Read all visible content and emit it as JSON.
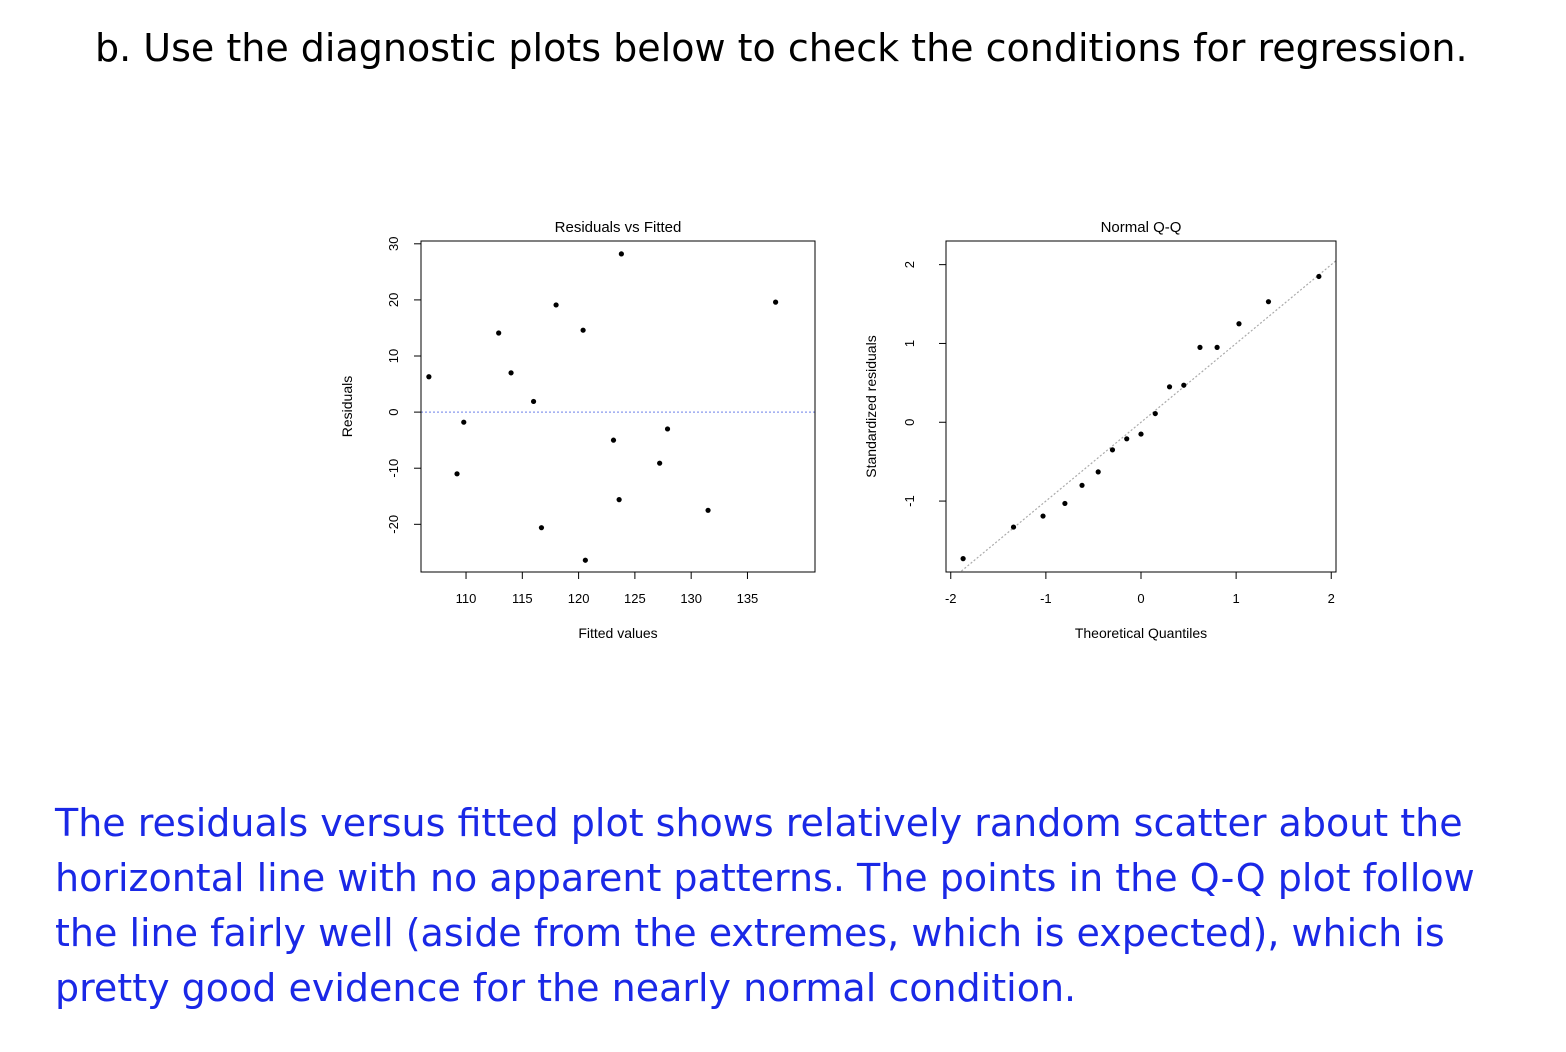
{
  "question": "b.  Use the diagnostic plots below to check the conditions for regression.",
  "answer": "The residuals versus fitted plot shows relatively random scatter about the horizontal line with no apparent patterns. The points in the Q-Q plot follow the line fairly well (aside from the extremes, which is expected), which is pretty good evidence for the nearly normal condition.",
  "chart_data": [
    {
      "type": "scatter",
      "title": "Residuals vs Fitted",
      "xlabel": "Fitted values",
      "ylabel": "Residuals",
      "xlim": [
        106,
        141
      ],
      "ylim": [
        -28.5,
        30.5
      ],
      "xticks": [
        110,
        115,
        120,
        125,
        130,
        135
      ],
      "yticks": [
        -20,
        -10,
        0,
        10,
        20,
        30
      ],
      "reference_line": {
        "type": "horizontal",
        "y": 0,
        "style": "dotted",
        "color": "#8899ee"
      },
      "points": [
        {
          "x": 106.7,
          "y": 6.3
        },
        {
          "x": 109.2,
          "y": -11.0
        },
        {
          "x": 109.8,
          "y": -1.8
        },
        {
          "x": 112.9,
          "y": 14.1
        },
        {
          "x": 114.0,
          "y": 7.0
        },
        {
          "x": 116.0,
          "y": 1.9
        },
        {
          "x": 116.7,
          "y": -20.6
        },
        {
          "x": 118.0,
          "y": 19.1
        },
        {
          "x": 120.4,
          "y": 14.6
        },
        {
          "x": 120.6,
          "y": -26.4
        },
        {
          "x": 123.1,
          "y": -5.0
        },
        {
          "x": 123.6,
          "y": -15.6
        },
        {
          "x": 123.8,
          "y": 28.2
        },
        {
          "x": 127.2,
          "y": -9.1
        },
        {
          "x": 127.9,
          "y": -3.0
        },
        {
          "x": 131.5,
          "y": -17.5
        },
        {
          "x": 137.5,
          "y": 19.6
        }
      ]
    },
    {
      "type": "scatter",
      "title": "Normal Q-Q",
      "xlabel": "Theoretical Quantiles",
      "ylabel": "Standardized residuals",
      "xlim": [
        -2.05,
        2.05
      ],
      "ylim": [
        -1.9,
        2.3
      ],
      "xticks": [
        -2,
        -1,
        0,
        1,
        2
      ],
      "yticks": [
        -1,
        0,
        1,
        2
      ],
      "reference_line": {
        "type": "y=x",
        "style": "dotted",
        "color": "#aaaaaa"
      },
      "points": [
        {
          "x": -1.87,
          "y": -1.73
        },
        {
          "x": -1.34,
          "y": -1.33
        },
        {
          "x": -1.03,
          "y": -1.19
        },
        {
          "x": -0.8,
          "y": -1.03
        },
        {
          "x": -0.62,
          "y": -0.8
        },
        {
          "x": -0.45,
          "y": -0.63
        },
        {
          "x": -0.3,
          "y": -0.35
        },
        {
          "x": -0.15,
          "y": -0.21
        },
        {
          "x": 0.0,
          "y": -0.15
        },
        {
          "x": 0.15,
          "y": 0.11
        },
        {
          "x": 0.3,
          "y": 0.45
        },
        {
          "x": 0.45,
          "y": 0.47
        },
        {
          "x": 0.62,
          "y": 0.95
        },
        {
          "x": 0.8,
          "y": 0.95
        },
        {
          "x": 1.03,
          "y": 1.25
        },
        {
          "x": 1.34,
          "y": 1.53
        },
        {
          "x": 1.87,
          "y": 1.85
        }
      ]
    }
  ]
}
